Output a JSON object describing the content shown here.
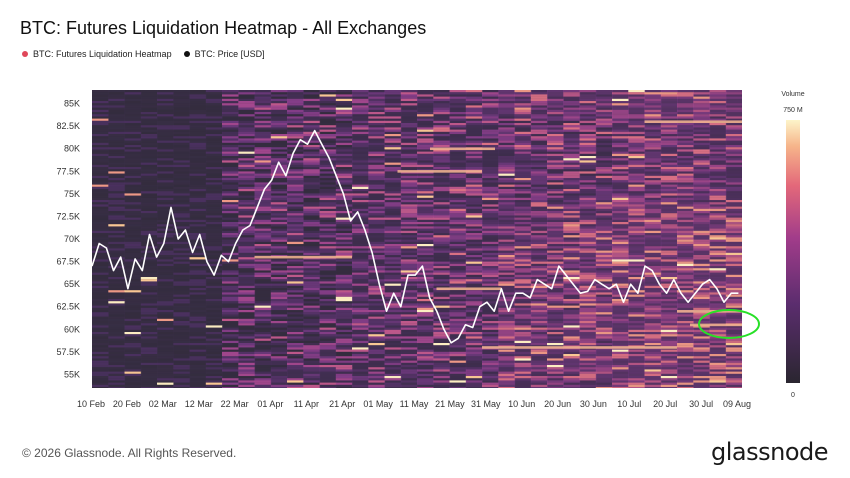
{
  "chart_data": {
    "type": "heatmap",
    "title": "BTC: Futures Liquidation Heatmap - All Exchanges",
    "legend": [
      {
        "name": "BTC: Futures Liquidation Heatmap",
        "color": "#e0475a"
      },
      {
        "name": "BTC: Price [USD]",
        "color": "#111111"
      }
    ],
    "x_ticks": [
      "10 Feb",
      "20 Feb",
      "02 Mar",
      "12 Mar",
      "22 Mar",
      "01 Apr",
      "11 Apr",
      "21 Apr",
      "01 May",
      "11 May",
      "21 May",
      "31 May",
      "10 Jun",
      "20 Jun",
      "30 Jun",
      "10 Jul",
      "20 Jul",
      "30 Jul",
      "09 Aug"
    ],
    "y_ticks": [
      "85K",
      "82.5K",
      "80K",
      "77.5K",
      "75K",
      "72.5K",
      "70K",
      "67.5K",
      "65K",
      "62.5K",
      "60K",
      "57.5K",
      "55K"
    ],
    "y_tick_values": [
      85000,
      82500,
      80000,
      77500,
      75000,
      72500,
      70000,
      67500,
      65000,
      62500,
      60000,
      57500,
      55000
    ],
    "ylim": [
      53500,
      86500
    ],
    "x_range_days": [
      0,
      181
    ],
    "colorbar": {
      "title": "Volume",
      "max_label": "750 M",
      "min_label": "0"
    },
    "price_series": {
      "name": "BTC: Price [USD]",
      "x_days": [
        0,
        2,
        4,
        6,
        8,
        10,
        12,
        14,
        16,
        18,
        20,
        22,
        24,
        26,
        28,
        30,
        32,
        34,
        36,
        38,
        40,
        42,
        44,
        46,
        48,
        50,
        52,
        54,
        56,
        58,
        60,
        62,
        64,
        66,
        68,
        70,
        72,
        74,
        76,
        78,
        80,
        82,
        84,
        86,
        88,
        90,
        92,
        94,
        96,
        98,
        100,
        102,
        104,
        106,
        108,
        110,
        112,
        114,
        116,
        118,
        120,
        122,
        124,
        126,
        128,
        130,
        132,
        134,
        136,
        138,
        140,
        142,
        144,
        146,
        148,
        150,
        152,
        154,
        156,
        158,
        160,
        162,
        164,
        166,
        168,
        170,
        172,
        174,
        176,
        178,
        180
      ],
      "values": [
        67000,
        69500,
        69000,
        66500,
        68000,
        64500,
        67800,
        66500,
        70500,
        68000,
        69500,
        73500,
        70000,
        71000,
        68500,
        70500,
        67500,
        66000,
        68200,
        67500,
        69500,
        71000,
        71500,
        73500,
        75500,
        76500,
        78500,
        77000,
        79500,
        81000,
        80500,
        82000,
        80500,
        79000,
        77000,
        75000,
        72000,
        73000,
        71000,
        68500,
        65000,
        62000,
        64000,
        62500,
        66000,
        66000,
        67000,
        63500,
        62000,
        60000,
        58500,
        59000,
        60500,
        60200,
        62500,
        63000,
        62000,
        64500,
        62000,
        64000,
        64000,
        63500,
        65500,
        65000,
        64500,
        67000,
        66000,
        65000,
        64000,
        64200,
        65500,
        65000,
        64500,
        65000,
        63000,
        65000,
        64000,
        67000,
        66500,
        65000,
        64000,
        65500,
        64000,
        63000,
        64000,
        65000,
        65500,
        64500,
        63000,
        64000,
        64000
      ]
    },
    "annotation": "green circle highlighting liquidation cluster near 60K-62.5K at the latest date"
  },
  "footer": {
    "copyright": "© 2026 Glassnode. All Rights Reserved.",
    "brand": "glassnode"
  }
}
